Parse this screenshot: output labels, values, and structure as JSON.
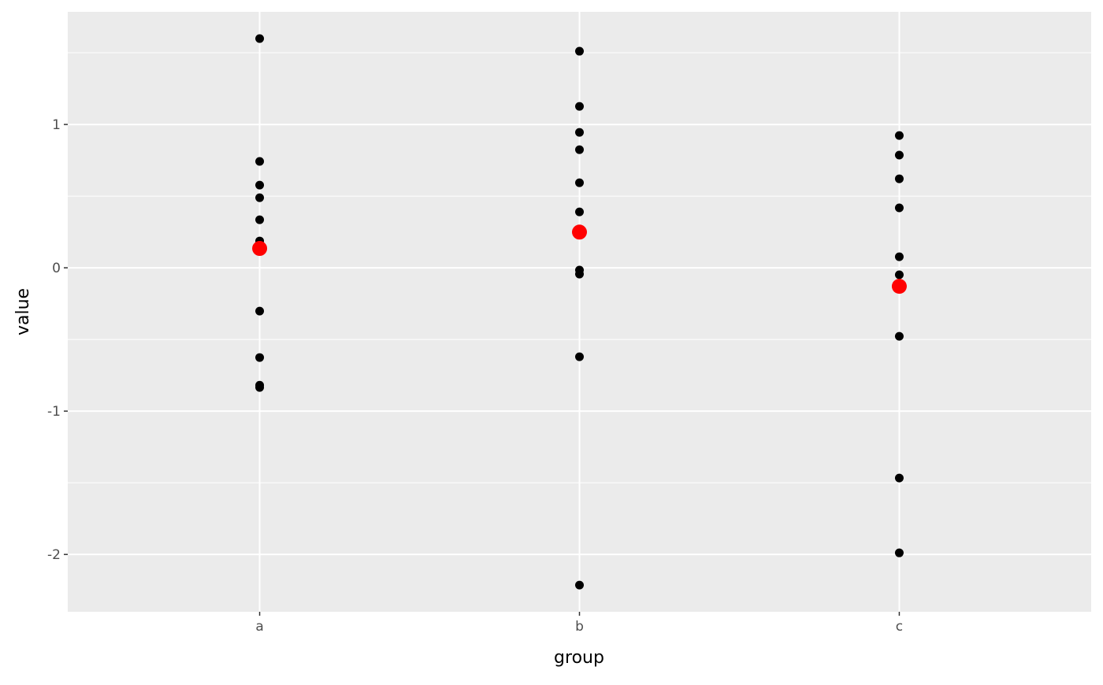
{
  "chart_data": {
    "type": "scatter",
    "xlabel": "group",
    "ylabel": "value",
    "categories": [
      "a",
      "b",
      "c"
    ],
    "ylim": [
      -2.4,
      1.786
    ],
    "yticks": [
      -2,
      -1,
      0,
      1
    ],
    "ytick_labels": [
      "-2",
      "-1",
      "0",
      "1"
    ],
    "grid": true,
    "panel_background": "#EBEBEB",
    "point_color": "#000000",
    "mean_color": "#FF0000",
    "series": [
      {
        "category": "a",
        "values": [
          1.599,
          0.742,
          0.577,
          0.489,
          0.335,
          0.187,
          -0.302,
          -0.626,
          -0.819,
          -0.835
        ],
        "mean": 0.135
      },
      {
        "category": "b",
        "values": [
          1.511,
          1.126,
          0.945,
          0.824,
          0.593,
          0.39,
          -0.016,
          -0.044,
          -0.621,
          -2.214
        ],
        "mean": 0.249
      },
      {
        "category": "c",
        "values": [
          0.923,
          0.786,
          0.621,
          0.418,
          0.077,
          -0.049,
          -0.478,
          -1.467,
          -1.989
        ],
        "mean": -0.129
      }
    ]
  }
}
